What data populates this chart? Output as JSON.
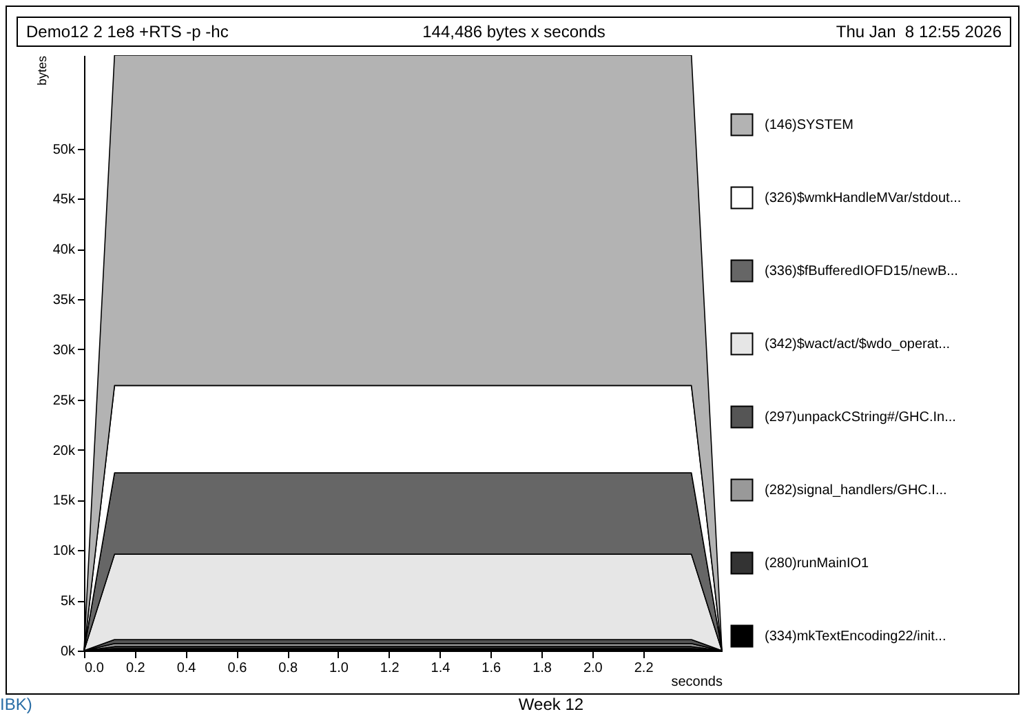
{
  "chart_data": {
    "type": "area",
    "stacked": true,
    "title": "Demo12 2 1e8 +RTS -p -hc",
    "subtitle": "144,486 bytes x seconds",
    "annotations": [
      "Thu Jan  8 12:55 2026",
      "IBK)",
      "Week 12"
    ],
    "xlabel": "seconds",
    "ylabel": "bytes",
    "x": [
      0,
      0.12,
      2.39,
      2.51
    ],
    "series": [
      {
        "name": "(334)mkTextEncoding22/init...",
        "color": "#000000",
        "values": [
          0,
          200,
          200,
          0
        ]
      },
      {
        "name": "(280)runMainIO1",
        "color": "#333333",
        "values": [
          0,
          200,
          200,
          0
        ]
      },
      {
        "name": "(282)signal_handlers/GHC.I...",
        "color": "#999999",
        "values": [
          0,
          300,
          300,
          0
        ]
      },
      {
        "name": "(297)unpackCString#/GHC.In...",
        "color": "#555555",
        "values": [
          0,
          400,
          400,
          0
        ]
      },
      {
        "name": "(342)$wact/act/$wdo_operat...",
        "color": "#e6e6e6",
        "values": [
          0,
          8500,
          8500,
          0
        ]
      },
      {
        "name": "(336)$fBufferedIOFD15/newB...",
        "color": "#666666",
        "values": [
          0,
          8100,
          8100,
          0
        ]
      },
      {
        "name": "(326)$wmkHandleMVar/stdout...",
        "color": "#ffffff",
        "values": [
          0,
          8700,
          8700,
          0
        ]
      },
      {
        "name": "(146)SYSTEM",
        "color": "#b3b3b3",
        "values": [
          0,
          32900,
          32900,
          0
        ]
      }
    ],
    "xlim": [
      0,
      2.51
    ],
    "xticks": [
      {
        "value": 0,
        "label": "0.0"
      },
      0.2,
      0.4,
      0.6,
      0.8,
      {
        "value": 1,
        "label": "1.0"
      },
      1.2,
      1.4,
      1.6,
      1.8,
      {
        "value": 2,
        "label": "2.0"
      },
      2.2
    ],
    "ylim": [
      0,
      59300
    ],
    "yticks": [
      {
        "value": 0,
        "label": "0k"
      },
      {
        "value": 5000,
        "label": "5k"
      },
      {
        "value": 10000,
        "label": "10k"
      },
      {
        "value": 15000,
        "label": "15k"
      },
      {
        "value": 20000,
        "label": "20k"
      },
      {
        "value": 25000,
        "label": "25k"
      },
      {
        "value": 30000,
        "label": "30k"
      },
      {
        "value": 35000,
        "label": "35k"
      },
      {
        "value": 40000,
        "label": "40k"
      },
      {
        "value": 45000,
        "label": "45k"
      },
      {
        "value": 50000,
        "label": "50k"
      }
    ],
    "grid": false,
    "legend": "right",
    "marker": "none",
    "line_style": "solid"
  }
}
